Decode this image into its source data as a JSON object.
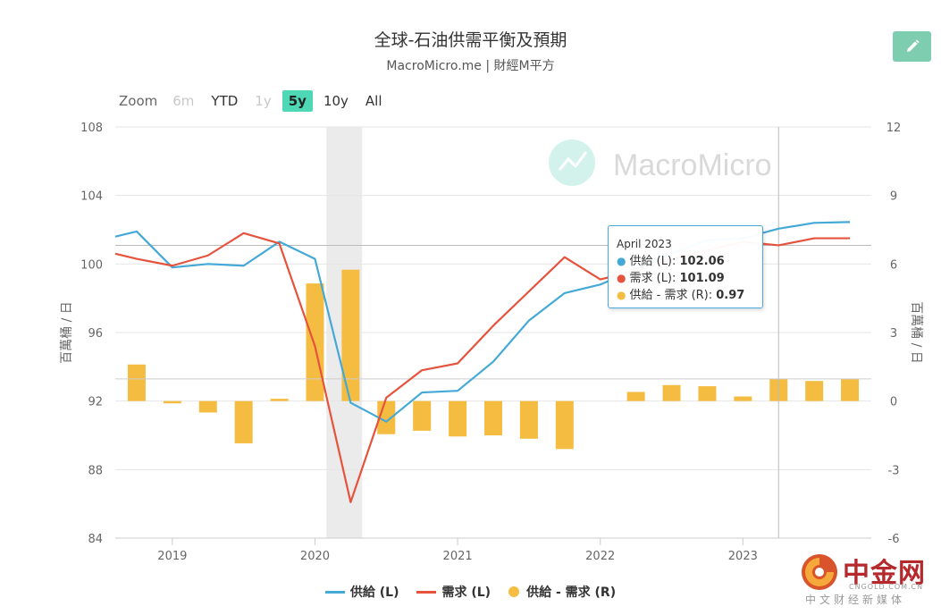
{
  "title": "全球-石油供需平衡及預期",
  "subtitle": "MacroMicro.me | 財經M平方",
  "zoom": {
    "label": "Zoom",
    "buttons": [
      {
        "label": "6m",
        "state": "disabled"
      },
      {
        "label": "YTD",
        "state": "normal"
      },
      {
        "label": "1y",
        "state": "disabled"
      },
      {
        "label": "5y",
        "state": "active"
      },
      {
        "label": "10y",
        "state": "normal"
      },
      {
        "label": "All",
        "state": "normal"
      }
    ]
  },
  "edit_icon": "pencil-icon",
  "watermark": "MacroMicro",
  "colors": {
    "supply": "#44a9d6",
    "demand": "#e5533d",
    "balance": "#f5bc42",
    "accent": "#7ecdb0",
    "zoom_active": "#4ed8b5",
    "recession_band": "#ebebeb"
  },
  "tooltip": {
    "date": "April 2023",
    "rows": [
      {
        "label": "供給 (L): ",
        "value": "102.06",
        "color": "#44a9d6"
      },
      {
        "label": "需求 (L): ",
        "value": "101.09",
        "color": "#e5533d"
      },
      {
        "label": "供給 - 需求 (R): ",
        "value": "0.97",
        "color": "#f5bc42"
      }
    ]
  },
  "legend": [
    {
      "label": "供給 (L)",
      "kind": "line",
      "color": "#44a9d6"
    },
    {
      "label": "需求 (L)",
      "kind": "line",
      "color": "#e5533d"
    },
    {
      "label": "供給 - 需求 (R)",
      "kind": "dot",
      "color": "#f5bc42"
    }
  ],
  "brand": {
    "name": "中金网",
    "url": "CNGOLD.COM.CN",
    "slogan": "中文财经新媒体"
  },
  "chart_data": {
    "type": "bar+line",
    "x_start": 2018.75,
    "x_range": [
      2018.6,
      2023.9
    ],
    "x_ticks": [
      "2019",
      "2020",
      "2021",
      "2022",
      "2023"
    ],
    "x_tick_values": [
      2019,
      2020,
      2021,
      2022,
      2023
    ],
    "left_axis": {
      "ylabel": "百萬桶 / 日",
      "ylim": [
        84,
        108
      ],
      "ticks": [
        "84",
        "88",
        "92",
        "96",
        "100",
        "104",
        "108"
      ]
    },
    "right_axis": {
      "ylabel": "百萬桶 / 日",
      "ylim": [
        -6,
        12
      ],
      "ticks": [
        "-6",
        "-3",
        "0",
        "3",
        "6",
        "9",
        "12"
      ]
    },
    "recession_band": [
      2020.08,
      2020.33
    ],
    "crosshair_x": 2023.25,
    "series": [
      {
        "name": "供給 (L)",
        "axis": "left",
        "kind": "line",
        "x": [
          2018.6,
          2018.75,
          2019.0,
          2019.25,
          2019.5,
          2019.75,
          2020.0,
          2020.25,
          2020.5,
          2020.75,
          2021.0,
          2021.25,
          2021.5,
          2021.75,
          2022.0,
          2022.25,
          2022.5,
          2022.75,
          2023.0,
          2023.25,
          2023.5,
          2023.75
        ],
        "values": [
          101.6,
          101.9,
          99.8,
          100.0,
          99.9,
          101.3,
          100.3,
          91.9,
          90.8,
          92.5,
          92.6,
          94.3,
          96.7,
          98.3,
          98.8,
          99.7,
          100.6,
          101.4,
          101.5,
          102.06,
          102.4,
          102.45
        ]
      },
      {
        "name": "需求 (L)",
        "axis": "left",
        "kind": "line",
        "x": [
          2018.6,
          2018.75,
          2019.0,
          2019.25,
          2019.5,
          2019.75,
          2020.0,
          2020.25,
          2020.5,
          2020.75,
          2021.0,
          2021.25,
          2021.5,
          2021.75,
          2022.0,
          2022.25,
          2022.5,
          2022.75,
          2023.0,
          2023.25,
          2023.5,
          2023.75
        ],
        "values": [
          100.6,
          100.3,
          99.9,
          100.5,
          101.8,
          101.2,
          95.2,
          86.1,
          92.2,
          93.8,
          94.2,
          96.4,
          98.4,
          100.4,
          99.1,
          99.6,
          100.3,
          100.8,
          101.3,
          101.09,
          101.5,
          101.5
        ]
      },
      {
        "name": "供給 - 需求 (R)",
        "axis": "right",
        "kind": "bar",
        "x": [
          2018.75,
          2019.0,
          2019.25,
          2019.5,
          2019.75,
          2020.0,
          2020.25,
          2020.5,
          2020.75,
          2021.0,
          2021.25,
          2021.5,
          2021.75,
          2022.0,
          2022.25,
          2022.5,
          2022.75,
          2023.0,
          2023.25,
          2023.5,
          2023.75
        ],
        "values": [
          1.6,
          -0.1,
          -0.5,
          -1.85,
          0.1,
          5.15,
          5.75,
          -1.45,
          -1.3,
          -1.55,
          -1.5,
          -1.65,
          -2.1,
          0.0,
          0.4,
          0.7,
          0.65,
          0.2,
          0.97,
          0.88,
          0.98
        ]
      }
    ]
  }
}
